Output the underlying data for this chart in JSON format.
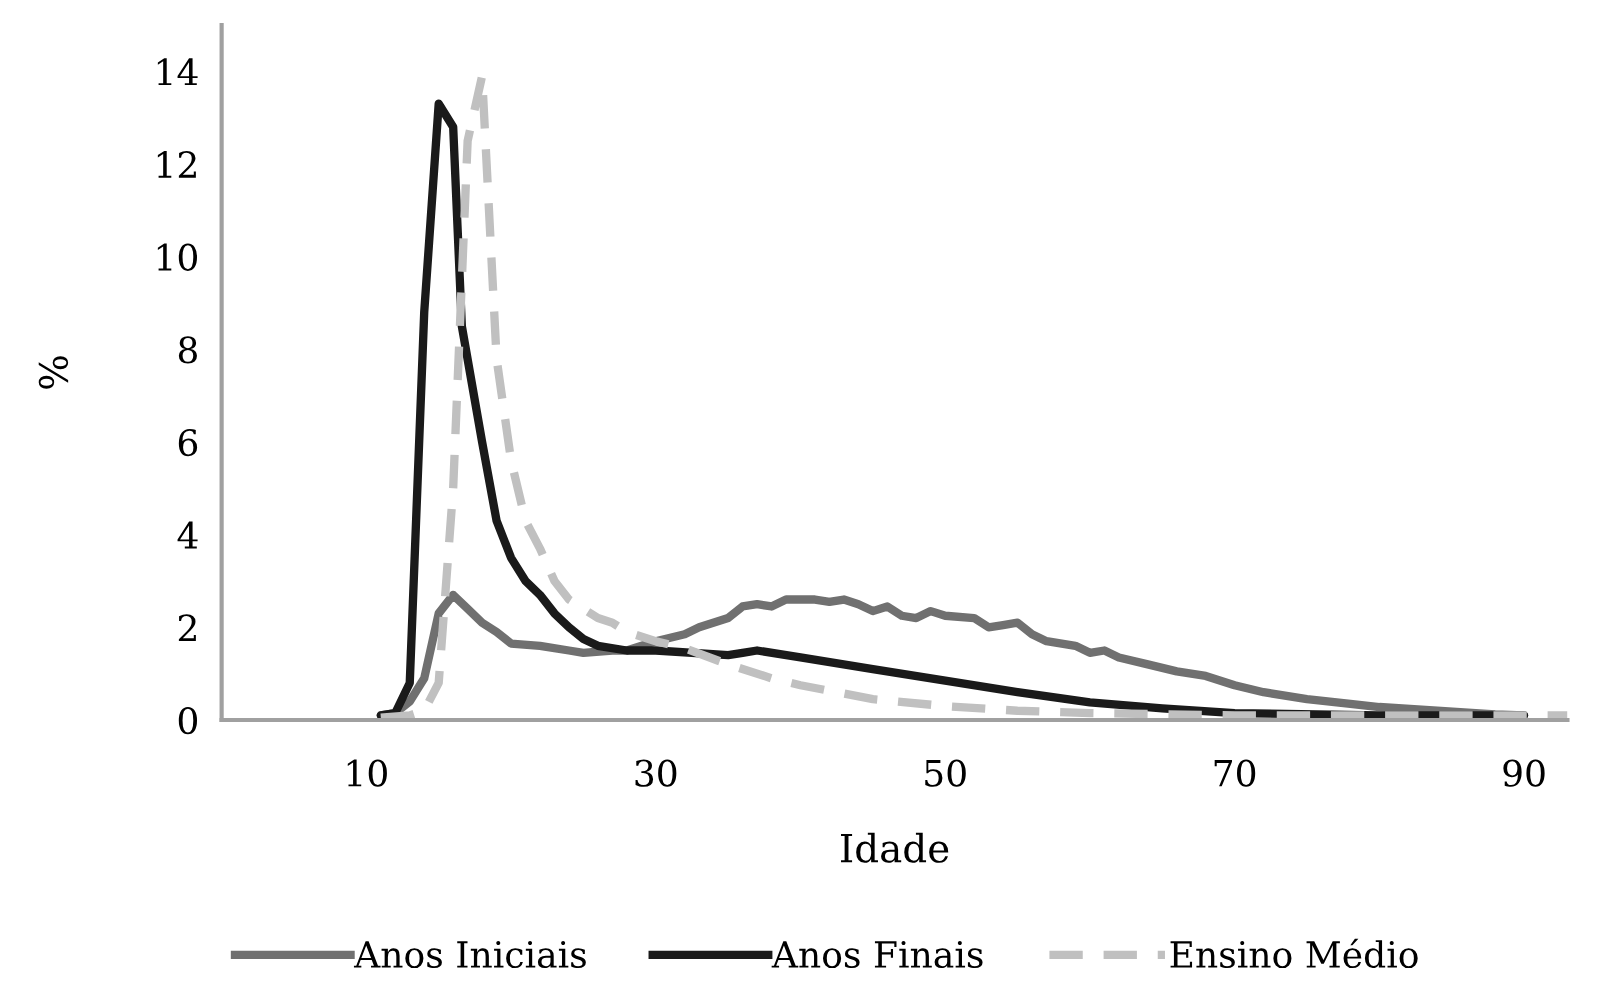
{
  "chart_data": {
    "type": "line",
    "xlabel": "Idade",
    "ylabel": "%",
    "xlim": [
      0,
      93
    ],
    "xticks": [
      10,
      30,
      50,
      70,
      90
    ],
    "ylim": [
      0,
      15
    ],
    "yticks": [
      0,
      2,
      4,
      6,
      8,
      10,
      12,
      14
    ],
    "grid": false,
    "legend": "bottom",
    "marker": "none",
    "series": [
      {
        "name": "Anos Iniciais",
        "color": "#707070",
        "line_style": "solid",
        "x": [
          11,
          12,
          13,
          14,
          15,
          16,
          17,
          18,
          19,
          20,
          22,
          24,
          25,
          27,
          28,
          30,
          32,
          33,
          35,
          36,
          37,
          38,
          39,
          41,
          42,
          43,
          44,
          45,
          46,
          47,
          48,
          49,
          50,
          52,
          53,
          54,
          55,
          56,
          57,
          59,
          60,
          61,
          62,
          64,
          66,
          68,
          70,
          72,
          75,
          78,
          80,
          84,
          88,
          90
        ],
        "values": [
          0.1,
          0.15,
          0.4,
          0.9,
          2.3,
          2.7,
          2.4,
          2.1,
          1.9,
          1.65,
          1.6,
          1.5,
          1.45,
          1.5,
          1.5,
          1.7,
          1.85,
          2.0,
          2.2,
          2.45,
          2.5,
          2.45,
          2.6,
          2.6,
          2.55,
          2.6,
          2.5,
          2.35,
          2.45,
          2.25,
          2.2,
          2.35,
          2.25,
          2.2,
          2.0,
          2.05,
          2.1,
          1.85,
          1.7,
          1.6,
          1.45,
          1.5,
          1.35,
          1.2,
          1.05,
          0.95,
          0.75,
          0.6,
          0.45,
          0.35,
          0.28,
          0.2,
          0.12,
          0.1
        ]
      },
      {
        "name": "Anos Finais",
        "color": "#1a1a1a",
        "line_style": "solid",
        "x": [
          11,
          12,
          13,
          14,
          15,
          16,
          16.6,
          18,
          19,
          20,
          21,
          22,
          23,
          24,
          25,
          26,
          28,
          30,
          35,
          36,
          37,
          40,
          45,
          50,
          55,
          60,
          65,
          70,
          80,
          90
        ],
        "values": [
          0.1,
          0.15,
          0.8,
          8.8,
          13.3,
          12.8,
          8.5,
          6.0,
          4.3,
          3.5,
          3.0,
          2.7,
          2.3,
          2.0,
          1.75,
          1.6,
          1.5,
          1.5,
          1.4,
          1.45,
          1.5,
          1.35,
          1.1,
          0.85,
          0.6,
          0.38,
          0.25,
          0.15,
          0.1,
          0.1
        ]
      },
      {
        "name": "Ensino Médio",
        "color": "#c0c0c0",
        "line_style": "dashed",
        "x": [
          11,
          13,
          14,
          15,
          16,
          17,
          18,
          19,
          20,
          21,
          22,
          23,
          24,
          25,
          26,
          27,
          28,
          30,
          32,
          35,
          38,
          40,
          45,
          50,
          55,
          60,
          70,
          90,
          93
        ],
        "values": [
          0.05,
          0.1,
          0.2,
          0.8,
          5.0,
          12.5,
          13.9,
          7.8,
          5.6,
          4.3,
          3.7,
          3.0,
          2.6,
          2.4,
          2.2,
          2.1,
          1.9,
          1.7,
          1.55,
          1.2,
          0.9,
          0.75,
          0.45,
          0.3,
          0.2,
          0.15,
          0.1,
          0.1,
          0.1
        ]
      }
    ]
  }
}
